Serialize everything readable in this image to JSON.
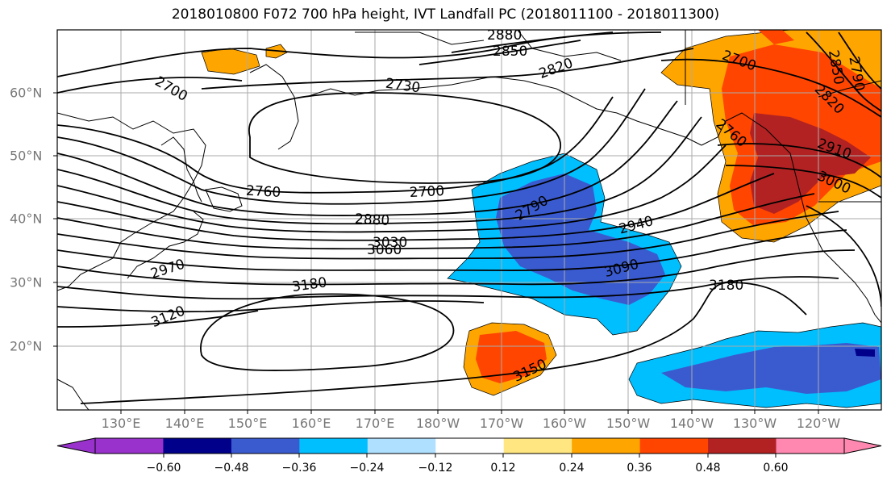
{
  "title": "2018010800 F072 700 hPa height, IVT Landfall PC (2018011100 - 2018011300)",
  "lat_labels": [
    "60°N",
    "50°N",
    "40°N",
    "30°N",
    "20°N"
  ],
  "lon_labels": [
    "130°E",
    "140°E",
    "150°E",
    "160°E",
    "170°E",
    "180°W",
    "170°W",
    "160°W",
    "150°W",
    "140°W",
    "130°W",
    "120°W"
  ],
  "contour_labels": [
    "2880",
    "2850",
    "2820",
    "2730",
    "2700",
    "2700",
    "2760",
    "2700",
    "2790",
    "2880",
    "2940",
    "3030",
    "3060",
    "3090",
    "2970",
    "3180",
    "3180",
    "3120",
    "3150",
    "2850",
    "2820",
    "2910",
    "3000",
    "2790",
    "2760"
  ],
  "colorbar": {
    "ticks": [
      "−0.60",
      "−0.48",
      "−0.36",
      "−0.24",
      "−0.12",
      "0.12",
      "0.24",
      "0.36",
      "0.48",
      "0.60"
    ],
    "colors": [
      "#9932cc",
      "#00008b",
      "#3a5bd0",
      "#00bfff",
      "#b0e0ff",
      "#ffffff",
      "#ffe680",
      "#ffa500",
      "#ff4500",
      "#b22222",
      "#ff88b0"
    ]
  }
}
